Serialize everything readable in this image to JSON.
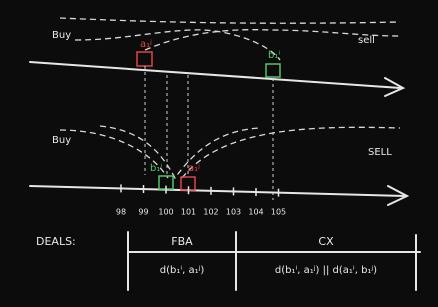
{
  "top_market": {
    "buy_label": "Buy",
    "sell_label": "sell",
    "ask_label": "a₁ʲ",
    "bid_label": "b₁ⁱ"
  },
  "bottom_market": {
    "buy_label": "Buy",
    "sell_label": "SELL",
    "bid_label": "b₁ⁱ",
    "ask_label": "a₁ʲ",
    "ticks": [
      "98",
      "99",
      "100",
      "101",
      "102",
      "103",
      "104",
      "105"
    ]
  },
  "deals": {
    "title": "DEALS:",
    "columns": [
      {
        "header": "FBA",
        "formula": "d(b₁ⁱ, a₁ʲ)"
      },
      {
        "header": "CX",
        "formula": "d(b₁ⁱ, a₁ʲ) || d(a₁ⁱ, b₁ʲ)"
      }
    ]
  }
}
